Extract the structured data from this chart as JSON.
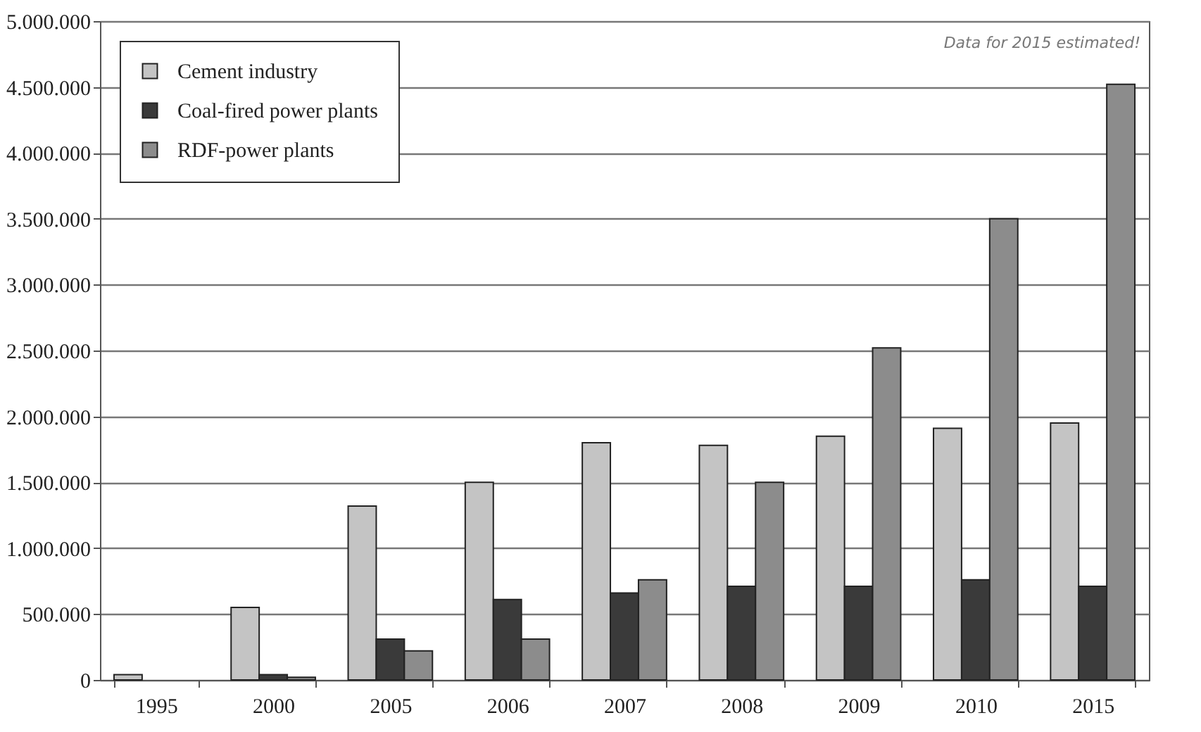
{
  "chart_data": {
    "type": "bar",
    "categories": [
      "1995",
      "2000",
      "2005",
      "2006",
      "2007",
      "2008",
      "2009",
      "2010",
      "2015"
    ],
    "series": [
      {
        "name": "Cement industry",
        "color": "#c4c4c4",
        "values": [
          40000,
          550000,
          1320000,
          1500000,
          1800000,
          1780000,
          1850000,
          1910000,
          1950000
        ]
      },
      {
        "name": "Coal-fired power plants",
        "color": "#3a3a3a",
        "values": [
          null,
          40000,
          310000,
          610000,
          660000,
          710000,
          710000,
          760000,
          710000
        ]
      },
      {
        "name": "RDF-power plants",
        "color": "#8c8c8c",
        "values": [
          null,
          20000,
          220000,
          310000,
          760000,
          1500000,
          2520000,
          3500000,
          4520000
        ]
      }
    ],
    "ylim": [
      0,
      5000000
    ],
    "yticks": [
      0,
      {
        "value": 500000,
        "label": "500.000"
      },
      {
        "value": 1000000,
        "label": "1.000.000"
      },
      {
        "value": 1500000,
        "label": "1.500.000"
      },
      {
        "value": 2000000,
        "label": "2.000.000"
      },
      {
        "value": 2500000,
        "label": "2.500.000"
      },
      {
        "value": 3000000,
        "label": "3.000.000"
      },
      {
        "value": 3500000,
        "label": "3.500.000"
      },
      {
        "value": 4000000,
        "label": "4.000.000"
      },
      {
        "value": 4500000,
        "label": "4.500.000"
      },
      {
        "value": 5000000,
        "label": "5.000.000"
      }
    ],
    "grid": "y",
    "legend": "top left",
    "annotations": [
      "Data for 2015 estimated!"
    ]
  }
}
